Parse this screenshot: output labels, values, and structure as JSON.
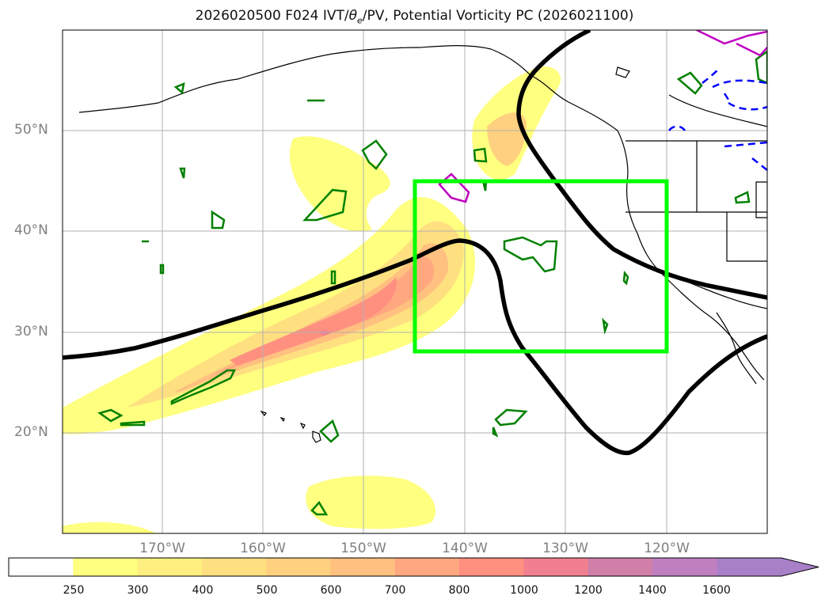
{
  "title": {
    "prefix": "2026020500 F024 IVT/",
    "theta_symbol": "θ",
    "theta_sub": "e",
    "suffix": "/PV, Potential Vorticity PC (2026021100)"
  },
  "latitude_labels": [
    "50°N",
    "40°N",
    "30°N",
    "20°N"
  ],
  "longitude_labels": [
    "170°W",
    "160°W",
    "150°W",
    "140°W",
    "130°W",
    "120°W"
  ],
  "colorbar": {
    "ticks": [
      "250",
      "300",
      "400",
      "500",
      "600",
      "700",
      "800",
      "1000",
      "1200",
      "1400",
      "1600"
    ],
    "colors": [
      "#ffffff",
      "#ffff80",
      "#ffef80",
      "#ffe080",
      "#ffd080",
      "#ffc080",
      "#ffa880",
      "#ff9080",
      "#f08090",
      "#d080a8",
      "#c080c0",
      "#a880c8"
    ],
    "extend": "max"
  },
  "map_colors": {
    "box": "#00ff00",
    "pv_contour": "#000000",
    "theta_positive": "#008000",
    "theta_magenta": "#c000c0",
    "theta_negative": "#0000ff",
    "coastline": "#000000",
    "grid": "#b0b0b0"
  }
}
